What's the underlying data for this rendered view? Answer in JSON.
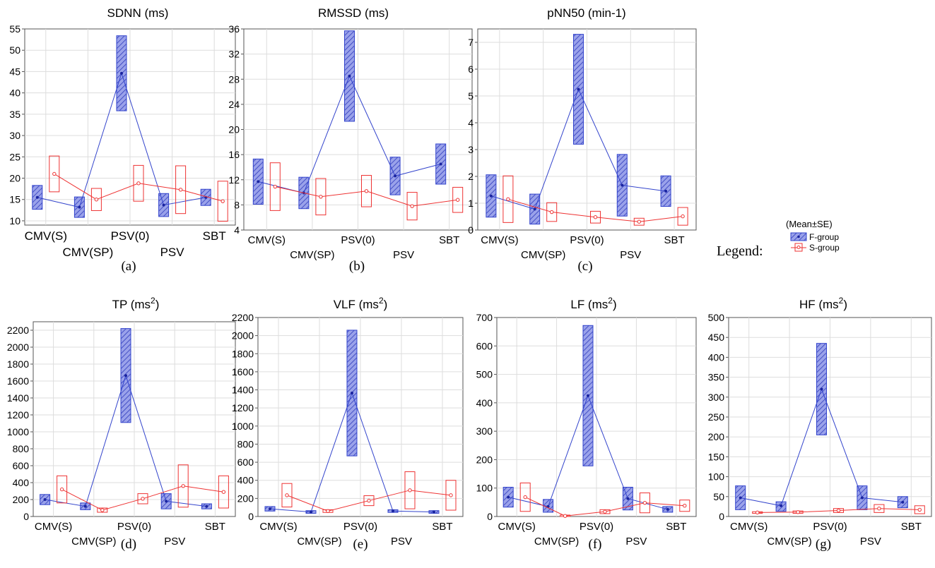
{
  "legend": {
    "label": "Legend:",
    "title": "(Mean±SE)",
    "entries": [
      "F-group",
      "S-group"
    ]
  },
  "colors": {
    "f_group": "#3344cc",
    "f_fill": "#8c94e6",
    "s_group": "#ee3333"
  },
  "chart_data": [
    {
      "type": "line",
      "panel": "(a)",
      "title": "SDNN (ms)",
      "ylim": [
        9,
        55
      ],
      "yticks": [
        10,
        15,
        20,
        25,
        30,
        35,
        40,
        45,
        50,
        55
      ],
      "categories": [
        "CMV(S)",
        "CMV(SP)",
        "PSV(0)",
        "PSV",
        "SBT"
      ],
      "series": [
        {
          "name": "F-group",
          "values": [
            15.5,
            13.2,
            44.6,
            13.7,
            15.5
          ],
          "lower": [
            12.7,
            10.8,
            35.8,
            11.0,
            13.6
          ],
          "upper": [
            18.3,
            15.6,
            53.4,
            16.4,
            17.4
          ]
        },
        {
          "name": "S-group",
          "values": [
            21.0,
            15.0,
            18.8,
            17.3,
            14.6
          ],
          "lower": [
            16.8,
            12.4,
            14.6,
            11.7,
            9.9
          ],
          "upper": [
            25.2,
            17.6,
            23.0,
            22.9,
            19.3
          ]
        }
      ]
    },
    {
      "type": "line",
      "panel": "(b)",
      "title": "RMSSD (ms)",
      "ylim": [
        4,
        36
      ],
      "yticks": [
        4,
        8,
        12,
        16,
        20,
        24,
        28,
        32,
        36
      ],
      "categories": [
        "CMV(S)",
        "CMV(SP)",
        "PSV(0)",
        "PSV",
        "SBT"
      ],
      "series": [
        {
          "name": "F-group",
          "values": [
            11.7,
            9.9,
            28.5,
            12.6,
            14.5
          ],
          "lower": [
            8.1,
            7.4,
            21.3,
            9.6,
            11.3
          ],
          "upper": [
            15.3,
            12.4,
            35.7,
            15.6,
            17.7
          ]
        },
        {
          "name": "S-group",
          "values": [
            10.9,
            9.3,
            10.2,
            7.8,
            8.8
          ],
          "lower": [
            7.1,
            6.4,
            7.7,
            5.6,
            6.8
          ],
          "upper": [
            14.7,
            12.2,
            12.7,
            10.0,
            10.8
          ]
        }
      ]
    },
    {
      "type": "line",
      "panel": "(c)",
      "title": "pNN50 (min-1)",
      "ylim": [
        0,
        7.5
      ],
      "yticks": [
        0,
        1,
        2,
        3,
        4,
        5,
        6,
        7
      ],
      "categories": [
        "CMV(S)",
        "CMV(SP)",
        "PSV(0)",
        "PSV",
        "SBT"
      ],
      "series": [
        {
          "name": "F-group",
          "values": [
            1.27,
            0.78,
            5.25,
            1.67,
            1.45
          ],
          "lower": [
            0.48,
            0.22,
            3.2,
            0.52,
            0.88
          ],
          "upper": [
            2.06,
            1.34,
            7.3,
            2.82,
            2.02
          ]
        },
        {
          "name": "S-group",
          "values": [
            1.15,
            0.67,
            0.48,
            0.31,
            0.51
          ],
          "lower": [
            0.28,
            0.32,
            0.26,
            0.18,
            0.18
          ],
          "upper": [
            2.02,
            1.02,
            0.7,
            0.44,
            0.84
          ]
        }
      ]
    },
    {
      "type": "line",
      "panel": "(d)",
      "title": "TP (ms2)",
      "ylim": [
        0,
        2300
      ],
      "yticks": [
        0,
        200,
        400,
        600,
        800,
        1000,
        1200,
        1400,
        1600,
        1800,
        2000,
        2200
      ],
      "categories": [
        "CMV(S)",
        "CMV(SP)",
        "PSV(0)",
        "PSV",
        "SBT"
      ],
      "series": [
        {
          "name": "F-group",
          "values": [
            200,
            120,
            1665,
            180,
            120
          ],
          "lower": [
            140,
            80,
            1110,
            90,
            90
          ],
          "upper": [
            260,
            160,
            2220,
            270,
            150
          ]
        },
        {
          "name": "S-group",
          "values": [
            320,
            75,
            210,
            360,
            290
          ],
          "lower": [
            160,
            50,
            150,
            110,
            100
          ],
          "upper": [
            480,
            100,
            270,
            610,
            480
          ]
        }
      ]
    },
    {
      "type": "line",
      "panel": "(e)",
      "title": "VLF (ms2)",
      "ylim": [
        0,
        2200
      ],
      "yticks": [
        0,
        200,
        400,
        600,
        800,
        1000,
        1200,
        1400,
        1600,
        1800,
        2000,
        2200
      ],
      "categories": [
        "CMV(S)",
        "CMV(SP)",
        "PSV(0)",
        "PSV",
        "SBT"
      ],
      "series": [
        {
          "name": "F-group",
          "values": [
            85,
            50,
            1365,
            60,
            50
          ],
          "lower": [
            60,
            35,
            670,
            45,
            35
          ],
          "upper": [
            110,
            65,
            2060,
            75,
            65
          ]
        },
        {
          "name": "S-group",
          "values": [
            235,
            60,
            175,
            290,
            235
          ],
          "lower": [
            105,
            45,
            120,
            85,
            70
          ],
          "upper": [
            365,
            75,
            230,
            495,
            400
          ]
        }
      ]
    },
    {
      "type": "line",
      "panel": "(f)",
      "title": "LF (ms2)",
      "ylim": [
        0,
        700
      ],
      "yticks": [
        0,
        100,
        200,
        300,
        400,
        500,
        600,
        700
      ],
      "categories": [
        "CMV(S)",
        "CMV(SP)",
        "PSV(0)",
        "PSV",
        "SBT"
      ],
      "series": [
        {
          "name": "F-group",
          "values": [
            68,
            35,
            425,
            63,
            25
          ],
          "lower": [
            33,
            15,
            178,
            23,
            15
          ],
          "upper": [
            103,
            60,
            672,
            103,
            35
          ]
        },
        {
          "name": "S-group",
          "values": [
            68,
            2,
            17,
            48,
            38
          ],
          "lower": [
            18,
            0,
            10,
            13,
            18
          ],
          "upper": [
            118,
            5,
            24,
            83,
            58
          ]
        }
      ]
    },
    {
      "type": "line",
      "panel": "(g)",
      "title": "HF (ms2)",
      "ylim": [
        0,
        500
      ],
      "yticks": [
        0,
        50,
        100,
        150,
        200,
        250,
        300,
        350,
        400,
        450,
        500
      ],
      "categories": [
        "CMV(S)",
        "CMV(SP)",
        "PSV(0)",
        "PSV",
        "SBT"
      ],
      "series": [
        {
          "name": "F-group",
          "values": [
            47,
            27,
            320,
            47,
            36
          ],
          "lower": [
            17,
            13,
            205,
            17,
            22
          ],
          "upper": [
            77,
            37,
            435,
            77,
            50
          ]
        },
        {
          "name": "S-group",
          "values": [
            10,
            11,
            15,
            20,
            17
          ],
          "lower": [
            8,
            8,
            10,
            10,
            7
          ],
          "upper": [
            12,
            14,
            20,
            30,
            27
          ]
        }
      ]
    }
  ]
}
